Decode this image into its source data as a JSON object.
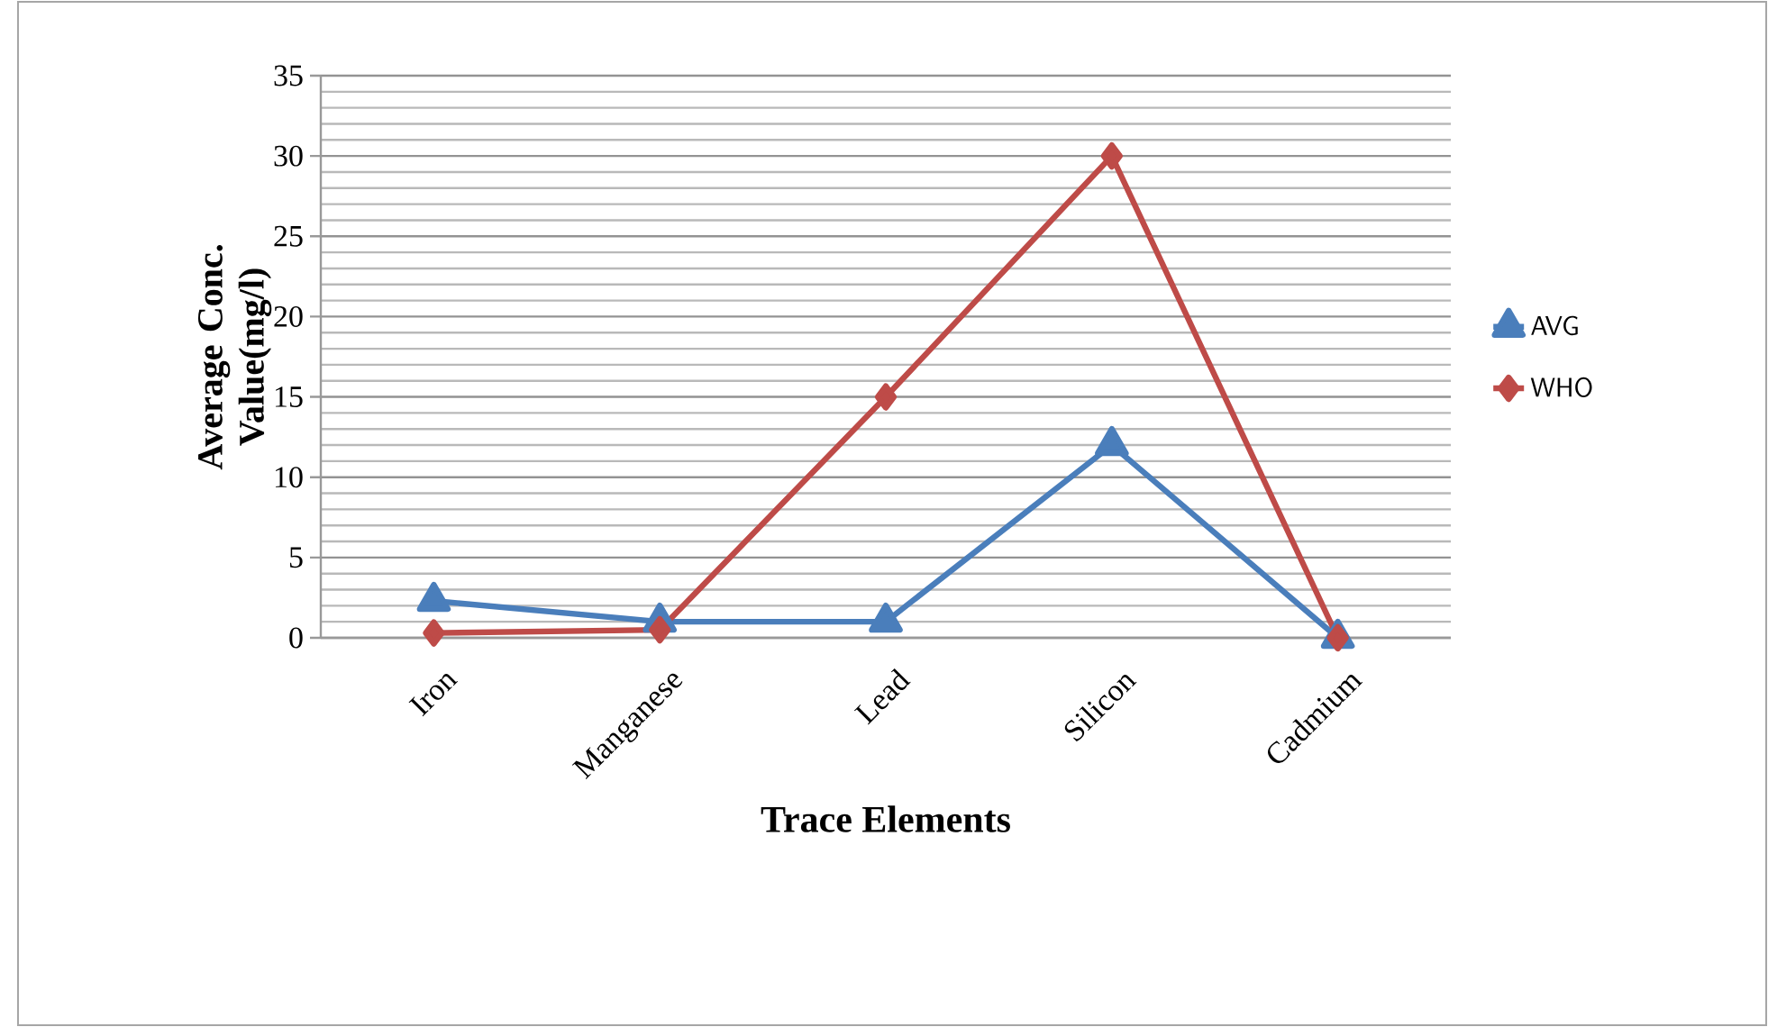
{
  "chart_data": {
    "type": "line",
    "xlabel": "Trace Elements",
    "ylabel": "Average Conc. Value(mg/l)",
    "categories": [
      "Iron",
      "Manganese",
      "Lead",
      "Silicon",
      "Cadmium"
    ],
    "series": [
      {
        "name": "AVG",
        "color": "#4a7ebb",
        "marker": "triangle",
        "values": [
          2.3,
          1,
          1,
          12,
          0
        ]
      },
      {
        "name": "WHO",
        "color": "#be4b48",
        "marker": "diamond",
        "values": [
          0.3,
          0.5,
          15,
          30,
          0
        ]
      }
    ],
    "ylim": [
      0,
      35
    ],
    "yticks": [
      0,
      5,
      10,
      15,
      20,
      25,
      30,
      35
    ],
    "grid": "y",
    "legend": "right",
    "line_style": "solid"
  }
}
